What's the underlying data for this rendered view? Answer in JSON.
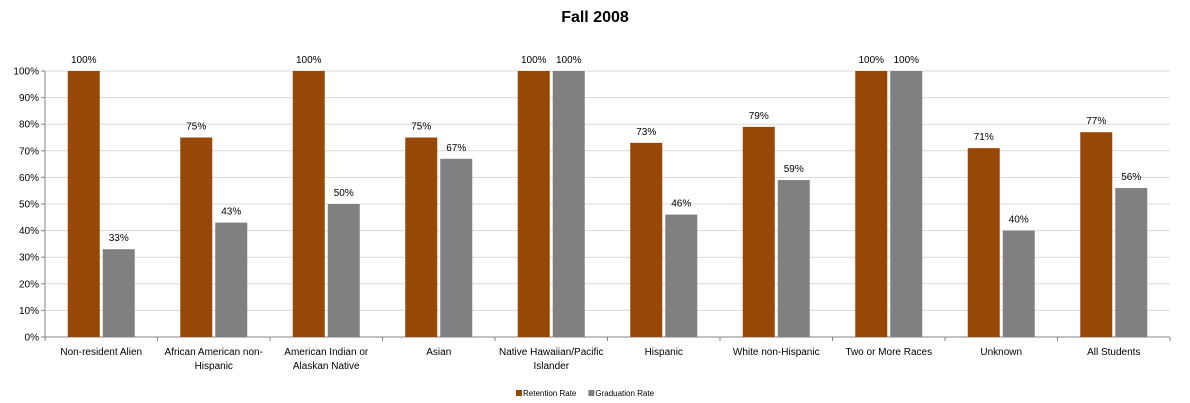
{
  "chart_data": {
    "type": "bar",
    "title": "Fall 2008",
    "xlabel": "",
    "ylabel": "",
    "ylim": [
      0,
      100
    ],
    "yticks": [
      "0%",
      "10%",
      "20%",
      "30%",
      "40%",
      "50%",
      "60%",
      "70%",
      "80%",
      "90%",
      "100%"
    ],
    "grid": true,
    "legend_position": "bottom",
    "categories": [
      [
        "Non-resident  Alien"
      ],
      [
        "African American non-",
        "Hispanic"
      ],
      [
        "American Indian or",
        "Alaskan Native"
      ],
      [
        "Asian"
      ],
      [
        "Native Hawaiian/Pacific",
        "Islander"
      ],
      [
        "Hispanic"
      ],
      [
        "White non-Hispanic"
      ],
      [
        "Two or More Races"
      ],
      [
        "Unknown"
      ],
      [
        "All Students"
      ]
    ],
    "series": [
      {
        "name": "Retention Rate",
        "color": "#974706",
        "values": [
          100,
          75,
          100,
          75,
          100,
          73,
          79,
          100,
          71,
          77
        ],
        "labels": [
          "100%",
          "75%",
          "100%",
          "75%",
          "100%",
          "73%",
          "79%",
          "100%",
          "71%",
          "77%"
        ]
      },
      {
        "name": "Graduation Rate",
        "color": "#808080",
        "values": [
          33,
          43,
          50,
          67,
          100,
          46,
          59,
          100,
          40,
          56
        ],
        "labels": [
          "33%",
          "43%",
          "50%",
          "67%",
          "100%",
          "46%",
          "59%",
          "100%",
          "40%",
          "56%"
        ]
      }
    ]
  }
}
